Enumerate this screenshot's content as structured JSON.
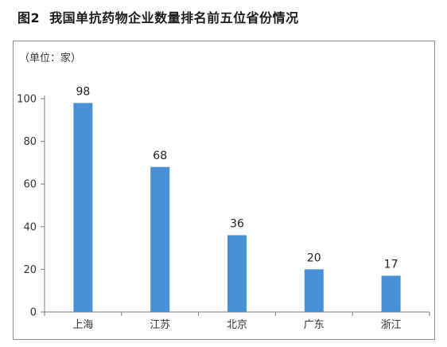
{
  "figure": {
    "label": "图2",
    "caption": "我国单抗药物企业数量排名前五位省份情况"
  },
  "chart_data": {
    "type": "bar",
    "unit_label": "（单位：家）",
    "categories": [
      "上海",
      "江苏",
      "北京",
      "广东",
      "浙江"
    ],
    "values": [
      98,
      68,
      36,
      20,
      17
    ],
    "data_labels": [
      "98",
      "68",
      "36",
      "20",
      "17"
    ],
    "yticks": [
      "0",
      "20",
      "40",
      "60",
      "80",
      "100"
    ],
    "ylim": [
      0,
      100
    ],
    "grid": false,
    "bar_color": "#4a90d6"
  }
}
